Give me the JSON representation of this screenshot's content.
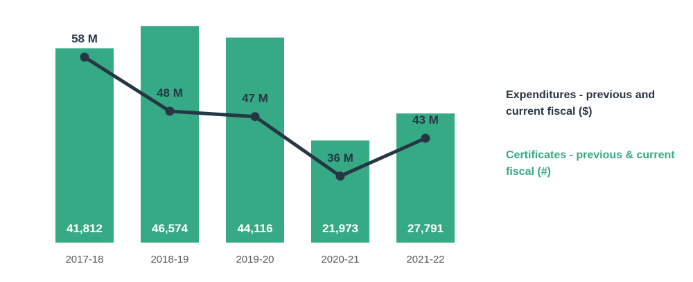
{
  "chart_data": {
    "type": "bar",
    "categories": [
      "2017-18",
      "2018-19",
      "2019-20",
      "2020-21",
      "2021-22"
    ],
    "series": [
      {
        "name": "Certificates - previous & current fiscal (#)",
        "type": "bar",
        "values": [
          41812,
          46574,
          44116,
          21973,
          27791
        ],
        "labels": [
          "41,812",
          "46,574",
          "44,116",
          "21,973",
          "27,791"
        ],
        "color": "#36a985"
      },
      {
        "name": "Expenditures - previous and current fiscal ($)",
        "type": "line",
        "values": [
          58,
          48,
          47,
          36,
          43
        ],
        "labels": [
          "58 M",
          "48 M",
          "47 M",
          "36 M",
          "43 M"
        ],
        "color": "#263645"
      }
    ],
    "bar_ylim": [
      0,
      47600
    ],
    "line_ylim": [
      23.7,
      64.6
    ],
    "grid": false,
    "legend_position": "right"
  },
  "legend": {
    "line_label": "Expenditures - previous and current fiscal ($)",
    "bar_label": "Certificates - previous & current fiscal (#)"
  },
  "colors": {
    "bar": "#36a985",
    "line": "#263645",
    "axis_text": "#595959"
  }
}
